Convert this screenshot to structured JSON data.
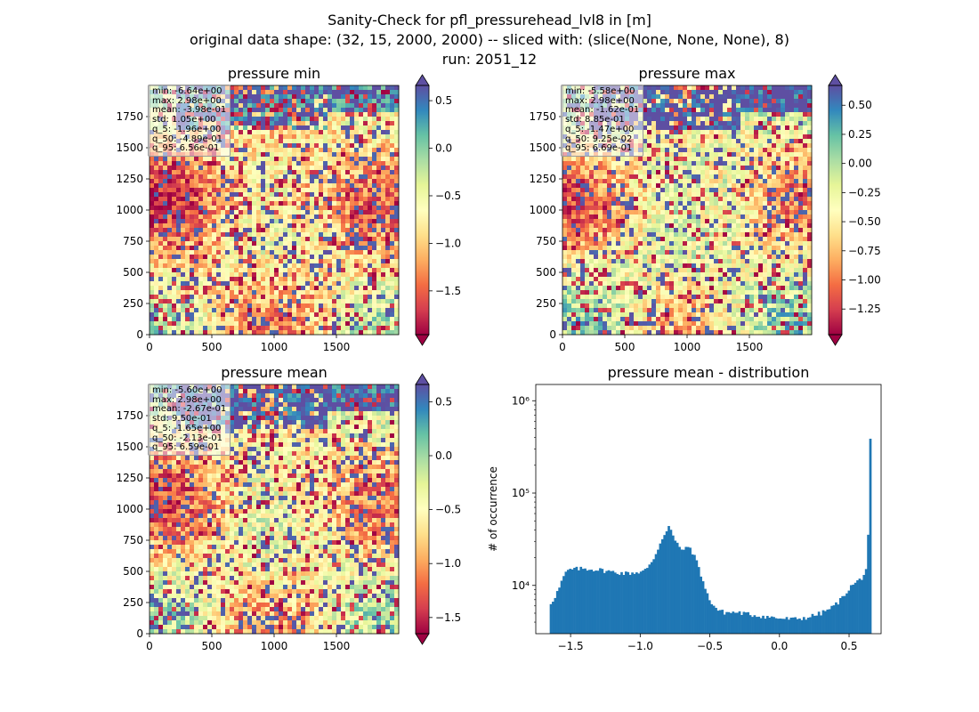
{
  "figure": {
    "title_line1": "Sanity-Check for pfl_pressurehead_lvl8 in [m]",
    "title_line2": "original data shape: (32, 15, 2000, 2000) -- sliced with: (slice(None, None, None), 8)",
    "title_line3": "run: 2051_12"
  },
  "colormap": {
    "name": "Spectral",
    "stops": [
      "#9e0142",
      "#d53e4f",
      "#f46d43",
      "#fdae61",
      "#fee08b",
      "#ffffbf",
      "#e6f598",
      "#abdda4",
      "#66c2a5",
      "#3288bd",
      "#5e4fa2"
    ]
  },
  "panels": [
    {
      "id": "min",
      "title": "pressure min",
      "x_ticks": [
        "0",
        "500",
        "1000",
        "1500"
      ],
      "y_ticks": [
        "0",
        "250",
        "500",
        "750",
        "1000",
        "1250",
        "1500",
        "1750"
      ],
      "colorbar_ticks": [
        "0.5",
        "0.0",
        "−0.5",
        "−1.0",
        "−1.5"
      ],
      "stats": [
        "min: -6.64e+00",
        "max: 2.98e+00",
        "mean: -3.98e-01",
        "std: 1.05e+00",
        "q_5: -1.96e+00",
        "q_50: -4.89e-01",
        "q_95: 6.56e-01"
      ]
    },
    {
      "id": "max",
      "title": "pressure max",
      "x_ticks": [
        "0",
        "500",
        "1000",
        "1500"
      ],
      "y_ticks": [
        "0",
        "250",
        "500",
        "750",
        "1000",
        "1250",
        "1500",
        "1750"
      ],
      "colorbar_ticks": [
        "0.50",
        "0.25",
        "0.00",
        "−0.25",
        "−0.50",
        "−0.75",
        "−1.00",
        "−1.25"
      ],
      "stats": [
        "min: -5.58e+00",
        "max: 2.98e+00",
        "mean: -1.62e-01",
        "std: 8.85e-01",
        "q_5: -1.47e+00",
        "q_50: 9.25e-02",
        "q_95: 6.69e-01"
      ]
    },
    {
      "id": "mean",
      "title": "pressure mean",
      "x_ticks": [
        "0",
        "500",
        "1000",
        "1500"
      ],
      "y_ticks": [
        "0",
        "250",
        "500",
        "750",
        "1000",
        "1250",
        "1500",
        "1750"
      ],
      "colorbar_ticks": [
        "0.5",
        "0.0",
        "−0.5",
        "−1.0",
        "−1.5"
      ],
      "stats": [
        "min: -5.60e+00",
        "max: 2.98e+00",
        "mean: -2.67e-01",
        "std: 9.50e-01",
        "q_5: -1.65e+00",
        "q_50: -2.13e-01",
        "q_95: 6.59e-01"
      ]
    }
  ],
  "chart_data": [
    {
      "type": "heatmap",
      "title": "pressure min",
      "x_range": [
        0,
        2000
      ],
      "y_range": [
        0,
        2000
      ],
      "x_ticks": [
        0,
        500,
        1000,
        1500
      ],
      "y_ticks": [
        0,
        250,
        500,
        750,
        1000,
        1250,
        1500,
        1750
      ],
      "colorbar": {
        "range": [
          -1.96,
          0.66
        ],
        "ticks": [
          0.5,
          0.0,
          -0.5,
          -1.0,
          -1.5
        ],
        "extend": "both"
      }
    },
    {
      "type": "heatmap",
      "title": "pressure max",
      "x_range": [
        0,
        2000
      ],
      "y_range": [
        0,
        2000
      ],
      "x_ticks": [
        0,
        500,
        1000,
        1500
      ],
      "y_ticks": [
        0,
        250,
        500,
        750,
        1000,
        1250,
        1500,
        1750
      ],
      "colorbar": {
        "range": [
          -1.47,
          0.67
        ],
        "ticks": [
          0.5,
          0.25,
          0.0,
          -0.25,
          -0.5,
          -0.75,
          -1.0,
          -1.25
        ],
        "extend": "both"
      }
    },
    {
      "type": "heatmap",
      "title": "pressure mean",
      "x_range": [
        0,
        2000
      ],
      "y_range": [
        0,
        2000
      ],
      "x_ticks": [
        0,
        500,
        1000,
        1500
      ],
      "y_ticks": [
        0,
        250,
        500,
        750,
        1000,
        1250,
        1500,
        1750
      ],
      "colorbar": {
        "range": [
          -1.65,
          0.66
        ],
        "ticks": [
          0.5,
          0.0,
          -0.5,
          -1.0,
          -1.5
        ],
        "extend": "both"
      }
    },
    {
      "type": "bar",
      "title": "pressure mean - distribution",
      "ylabel": "# of occurrence",
      "xlabel": "",
      "yscale": "log",
      "xlim": [
        -1.75,
        0.73
      ],
      "ylim": [
        3000,
        1500000
      ],
      "x_ticks": [
        -1.5,
        -1.0,
        -0.5,
        0.0,
        0.5
      ],
      "x_tick_labels": [
        "−1.5",
        "−1.0",
        "−0.5",
        "0.0",
        "0.5"
      ],
      "y_ticks": [
        10000,
        100000,
        1000000
      ],
      "y_tick_labels": [
        "10⁴",
        "10⁵",
        "10⁶"
      ],
      "color": "#1f77b4",
      "bin_range": [
        -1.65,
        0.66
      ],
      "anchors": [
        [
          -1.65,
          6200
        ],
        [
          -1.62,
          7200
        ],
        [
          -1.58,
          9500
        ],
        [
          -1.55,
          12500
        ],
        [
          -1.52,
          14500
        ],
        [
          -1.48,
          15000
        ],
        [
          -1.4,
          15200
        ],
        [
          -1.3,
          14800
        ],
        [
          -1.2,
          14000
        ],
        [
          -1.1,
          13500
        ],
        [
          -1.0,
          14000
        ],
        [
          -0.95,
          15000
        ],
        [
          -0.9,
          20000
        ],
        [
          -0.86,
          28000
        ],
        [
          -0.82,
          38000
        ],
        [
          -0.79,
          45000
        ],
        [
          -0.76,
          32000
        ],
        [
          -0.72,
          26000
        ],
        [
          -0.68,
          24000
        ],
        [
          -0.65,
          27000
        ],
        [
          -0.62,
          22000
        ],
        [
          -0.58,
          16000
        ],
        [
          -0.55,
          11000
        ],
        [
          -0.52,
          8000
        ],
        [
          -0.48,
          6200
        ],
        [
          -0.44,
          5400
        ],
        [
          -0.4,
          5100
        ],
        [
          -0.3,
          5100
        ],
        [
          -0.2,
          4800
        ],
        [
          -0.1,
          4600
        ],
        [
          0.0,
          4400
        ],
        [
          0.1,
          4300
        ],
        [
          0.2,
          4500
        ],
        [
          0.3,
          5000
        ],
        [
          0.38,
          5800
        ],
        [
          0.44,
          7000
        ],
        [
          0.48,
          8500
        ],
        [
          0.52,
          10000
        ],
        [
          0.56,
          11000
        ],
        [
          0.6,
          12500
        ],
        [
          0.62,
          14500
        ],
        [
          0.63,
          20000
        ],
        [
          0.64,
          42000
        ],
        [
          0.65,
          150000
        ],
        [
          0.655,
          1050000
        ],
        [
          0.66,
          1050000
        ]
      ]
    }
  ]
}
